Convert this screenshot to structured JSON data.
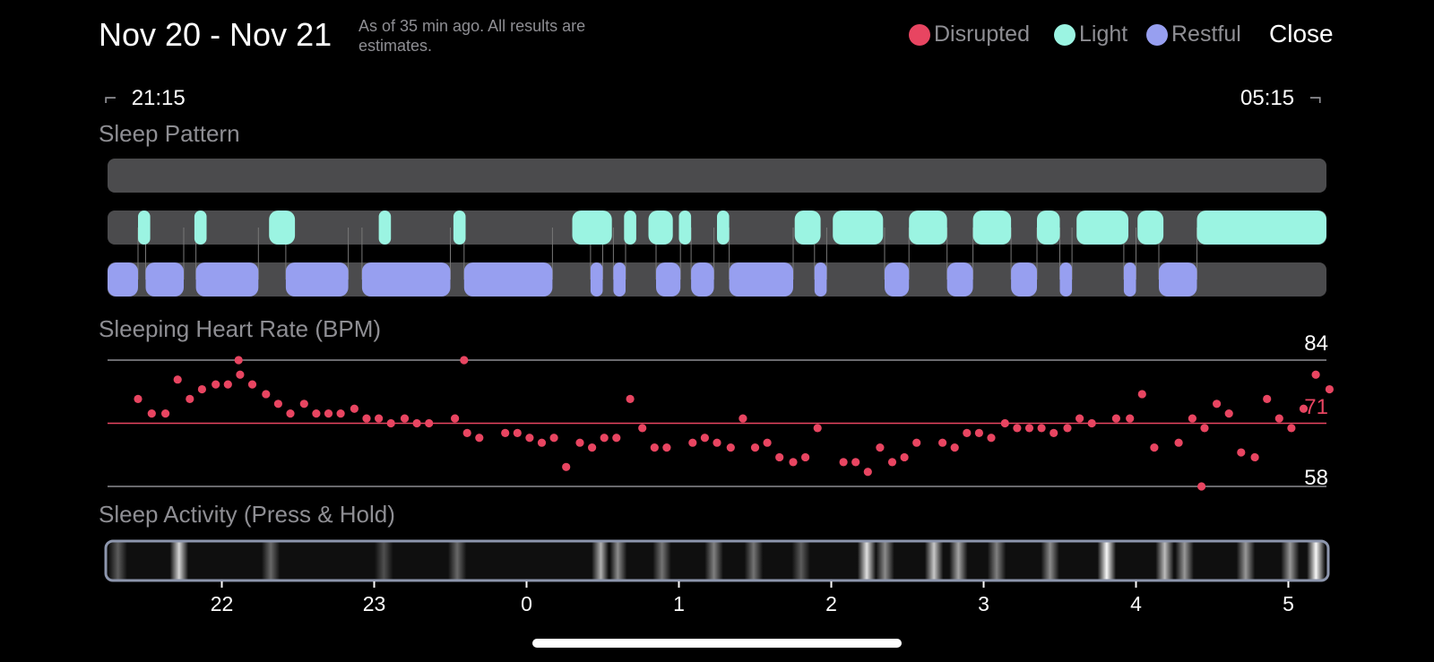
{
  "header": {
    "title": "Nov 20 - Nov 21",
    "as_of": "As of 35 min ago. All results are estimates.",
    "close_label": "Close"
  },
  "legend": [
    {
      "label": "Disrupted",
      "color": "#e84561"
    },
    {
      "label": "Light",
      "color": "#9bf4e2"
    },
    {
      "label": "Restful",
      "color": "#979ff0"
    }
  ],
  "time_range": {
    "start": "21:15",
    "end": "05:15"
  },
  "sections": {
    "sleep_pattern": "Sleep Pattern",
    "heart_rate": "Sleeping Heart Rate (BPM)",
    "activity": "Sleep Activity (Press & Hold)"
  },
  "colors": {
    "track": "#4b4b4d",
    "disrupted": "#e84561",
    "light": "#9bf4e2",
    "restful": "#979ff0",
    "gridline": "#8e8e93",
    "avg_line": "#e84561",
    "activity_border": "#8d96ad"
  },
  "chart_data": [
    {
      "type": "timeline",
      "title": "Sleep Pattern",
      "x_unit": "hours since 21:15",
      "xlim": [
        0,
        8
      ],
      "rows": [
        "Disrupted",
        "Light",
        "Restful"
      ],
      "segments": {
        "Disrupted": [],
        "Light": [
          [
            0.2,
            0.28
          ],
          [
            0.57,
            0.65
          ],
          [
            1.06,
            1.23
          ],
          [
            1.78,
            1.86
          ],
          [
            2.27,
            2.35
          ],
          [
            3.05,
            3.31
          ],
          [
            3.39,
            3.47
          ],
          [
            3.55,
            3.71
          ],
          [
            3.75,
            3.83
          ],
          [
            4.0,
            4.08
          ],
          [
            4.51,
            4.68
          ],
          [
            4.76,
            5.09
          ],
          [
            5.26,
            5.51
          ],
          [
            5.68,
            5.93
          ],
          [
            6.1,
            6.25
          ],
          [
            6.36,
            6.7
          ],
          [
            6.76,
            6.93
          ],
          [
            7.15,
            8.0
          ]
        ],
        "Restful": [
          [
            0.0,
            0.2
          ],
          [
            0.25,
            0.5
          ],
          [
            0.58,
            0.99
          ],
          [
            1.17,
            1.58
          ],
          [
            1.67,
            2.25
          ],
          [
            2.34,
            2.92
          ],
          [
            3.17,
            3.25
          ],
          [
            3.32,
            3.4
          ],
          [
            3.6,
            3.76
          ],
          [
            3.83,
            3.98
          ],
          [
            4.08,
            4.5
          ],
          [
            4.64,
            4.72
          ],
          [
            5.1,
            5.26
          ],
          [
            5.51,
            5.68
          ],
          [
            5.93,
            6.1
          ],
          [
            6.25,
            6.33
          ],
          [
            6.67,
            6.75
          ],
          [
            6.9,
            7.15
          ]
        ]
      }
    },
    {
      "type": "scatter",
      "title": "Sleeping Heart Rate (BPM)",
      "x_unit": "hours since 21:15",
      "xlim": [
        0,
        8
      ],
      "ylim": [
        58,
        84
      ],
      "y_labels": {
        "max": "84",
        "avg": "71",
        "min": "58"
      },
      "reference_lines": {
        "max": 84,
        "avg": 71,
        "min": 58
      },
      "x": [
        0.2,
        0.29,
        0.38,
        0.46,
        0.54,
        0.62,
        0.71,
        0.79,
        0.87,
        0.95,
        1.04,
        1.12,
        1.2,
        1.29,
        1.37,
        1.45,
        1.53,
        1.62,
        1.7,
        1.78,
        1.86,
        1.95,
        2.03,
        2.11,
        2.28,
        2.36,
        2.44,
        2.61,
        2.69,
        2.77,
        2.85,
        2.93,
        3.01,
        3.1,
        3.18,
        3.26,
        3.34,
        3.43,
        3.51,
        3.59,
        3.67,
        3.84,
        3.92,
        4.0,
        4.09,
        4.17,
        4.25,
        4.33,
        4.41,
        4.5,
        4.58,
        4.66,
        4.83,
        4.91,
        4.99,
        5.07,
        5.15,
        5.23,
        5.31,
        5.48,
        5.56,
        5.64,
        5.72,
        5.8,
        5.89,
        5.97,
        6.05,
        6.13,
        6.21,
        6.3,
        6.38,
        6.46,
        6.62,
        6.71,
        6.79,
        6.87,
        7.03,
        7.12,
        7.2,
        7.28,
        7.36,
        7.44,
        7.53,
        7.61,
        7.69,
        7.77,
        7.85,
        7.93,
        8.02
      ],
      "y": [
        76,
        73,
        73,
        80,
        76,
        78,
        79,
        79,
        81,
        79,
        77,
        75,
        73,
        75,
        73,
        73,
        73,
        74,
        72,
        72,
        71,
        72,
        71,
        71,
        72,
        69,
        68,
        69,
        69,
        68,
        67,
        68,
        62,
        67,
        66,
        68,
        68,
        76,
        70,
        66,
        66,
        67,
        68,
        67,
        66,
        72,
        66,
        67,
        64,
        63,
        64,
        70,
        63,
        63,
        61,
        66,
        63,
        64,
        67,
        67,
        66,
        69,
        69,
        68,
        71,
        70,
        70,
        70,
        69,
        70,
        72,
        71,
        72,
        72,
        77,
        66,
        67,
        72,
        70,
        75,
        73,
        65,
        64,
        76,
        72,
        70,
        74,
        81,
        78
      ],
      "min_point": {
        "x": 7.18,
        "y": 58
      },
      "max_points": [
        {
          "x": 0.86,
          "y": 84
        },
        {
          "x": 2.34,
          "y": 84
        }
      ]
    },
    {
      "type": "heatmap",
      "title": "Sleep Activity (Press & Hold)",
      "x_unit": "hours since 21:15",
      "xlim": [
        0,
        8
      ],
      "x_tick_labels": [
        {
          "hour": 0.75,
          "label": "22"
        },
        {
          "hour": 1.75,
          "label": "23"
        },
        {
          "hour": 2.75,
          "label": "0"
        },
        {
          "hour": 3.75,
          "label": "1"
        },
        {
          "hour": 4.75,
          "label": "2"
        },
        {
          "hour": 5.75,
          "label": "3"
        },
        {
          "hour": 6.75,
          "label": "4"
        },
        {
          "hour": 7.75,
          "label": "5"
        }
      ],
      "activity": [
        {
          "x": 0.08,
          "level": 0.35
        },
        {
          "x": 0.48,
          "level": 0.85
        },
        {
          "x": 1.08,
          "level": 0.4
        },
        {
          "x": 1.82,
          "level": 0.3
        },
        {
          "x": 2.3,
          "level": 0.4
        },
        {
          "x": 3.24,
          "level": 0.7
        },
        {
          "x": 3.35,
          "level": 0.55
        },
        {
          "x": 3.64,
          "level": 0.45
        },
        {
          "x": 3.98,
          "level": 0.5
        },
        {
          "x": 4.24,
          "level": 0.45
        },
        {
          "x": 4.55,
          "level": 0.35
        },
        {
          "x": 4.98,
          "level": 0.9
        },
        {
          "x": 5.1,
          "level": 0.55
        },
        {
          "x": 5.42,
          "level": 0.8
        },
        {
          "x": 5.58,
          "level": 0.65
        },
        {
          "x": 5.83,
          "level": 0.5
        },
        {
          "x": 6.18,
          "level": 0.55
        },
        {
          "x": 6.55,
          "level": 1.0
        },
        {
          "x": 6.93,
          "level": 0.75
        },
        {
          "x": 7.06,
          "level": 0.6
        },
        {
          "x": 7.46,
          "level": 0.6
        },
        {
          "x": 7.75,
          "level": 0.6
        },
        {
          "x": 7.92,
          "level": 1.0
        }
      ]
    }
  ]
}
